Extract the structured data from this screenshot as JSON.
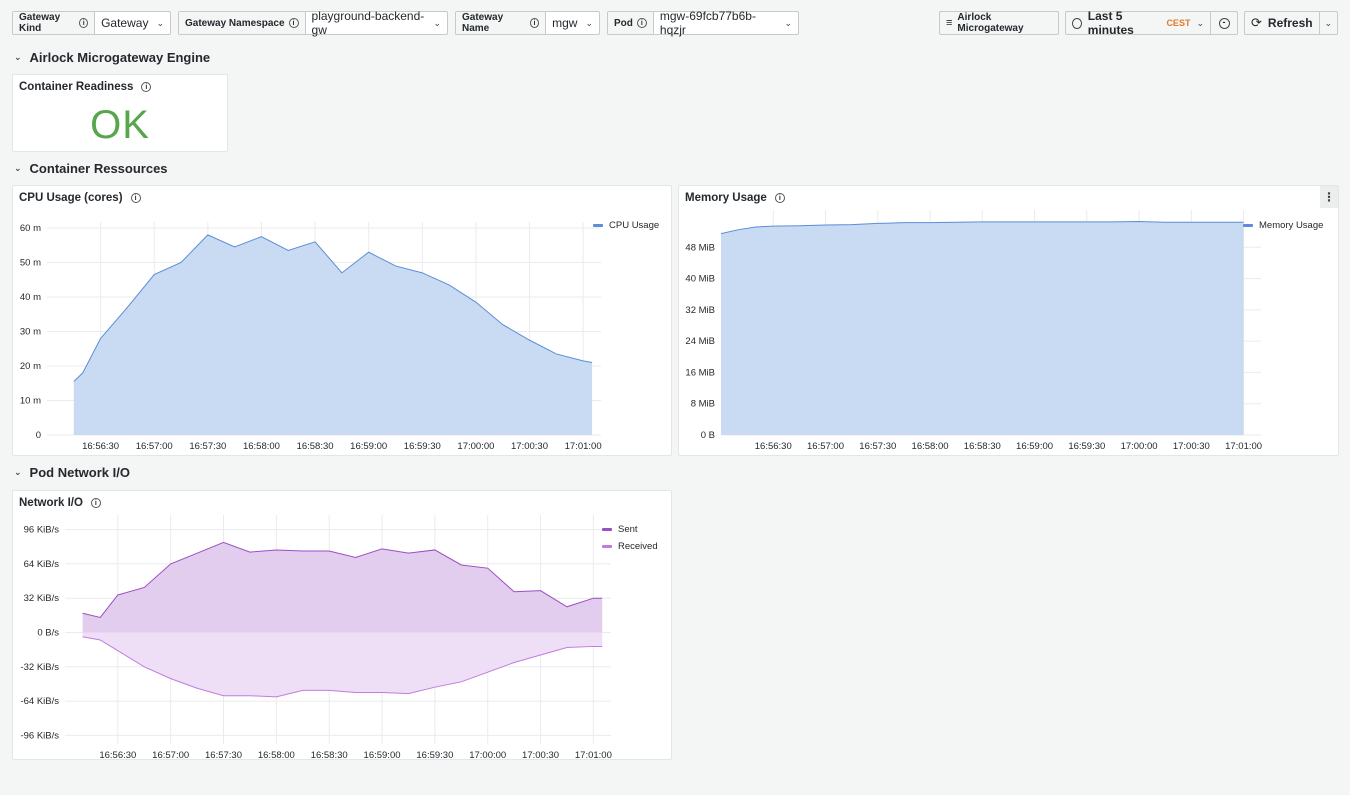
{
  "toolbar": {
    "vars": [
      {
        "label": "Gateway Kind",
        "value": "Gateway"
      },
      {
        "label": "Gateway Namespace",
        "value": "playground-backend-gw"
      },
      {
        "label": "Gateway Name",
        "value": "mgw"
      },
      {
        "label": "Pod",
        "value": "mgw-69fcb77b6b-hqzjr"
      }
    ],
    "dashboard_link": "Airlock Microgateway",
    "time_range": "Last 5 minutes",
    "timezone": "CEST",
    "refresh_label": "Refresh"
  },
  "rows": [
    {
      "title": "Airlock Microgateway Engine"
    },
    {
      "title": "Container Ressources"
    },
    {
      "title": "Pod Network I/O"
    }
  ],
  "panels": {
    "readiness": {
      "title": "Container Readiness",
      "value": "OK"
    },
    "cpu": {
      "title": "CPU Usage (cores)"
    },
    "memory": {
      "title": "Memory Usage"
    },
    "network": {
      "title": "Network I/O"
    }
  },
  "colors": {
    "ok": "#56a64b",
    "blue_line": "#5b8ed6",
    "blue_fill": "#c9daf3",
    "purple_line": "#9b4fc2",
    "purple_fill": "#e3cdee",
    "light_purple_line": "#c27be0",
    "light_purple_fill": "#efdff6"
  },
  "chart_data": [
    {
      "type": "area",
      "title": "CPU Usage (cores)",
      "x": [
        "16:56:15",
        "16:56:20",
        "16:56:30",
        "16:56:45",
        "16:57:00",
        "16:57:15",
        "16:57:30",
        "16:57:45",
        "16:58:00",
        "16:58:15",
        "16:58:30",
        "16:58:45",
        "16:59:00",
        "16:59:15",
        "16:59:30",
        "16:59:45",
        "17:00:00",
        "17:00:15",
        "17:00:30",
        "17:00:45",
        "17:01:00",
        "17:01:05"
      ],
      "x_ticks": [
        "16:56:30",
        "16:57:00",
        "16:57:30",
        "16:58:00",
        "16:58:30",
        "16:59:00",
        "16:59:30",
        "17:00:00",
        "17:00:30",
        "17:01:00"
      ],
      "y_ticks": [
        "0",
        "10 m",
        "20 m",
        "30 m",
        "40 m",
        "50 m",
        "60 m"
      ],
      "ylim": [
        0,
        60
      ],
      "series": [
        {
          "name": "CPU Usage",
          "values": [
            15.5,
            18,
            28,
            37,
            46.5,
            50,
            58,
            54.5,
            57.5,
            53.5,
            56,
            47,
            53,
            49,
            47,
            43.5,
            38.5,
            32,
            27.5,
            23.5,
            21.5,
            21
          ]
        }
      ],
      "legend": "top-right"
    },
    {
      "type": "area",
      "title": "Memory Usage",
      "x": [
        "16:56:00",
        "16:56:10",
        "16:56:20",
        "16:56:30",
        "16:56:45",
        "16:57:00",
        "16:57:15",
        "16:57:30",
        "16:57:45",
        "16:58:00",
        "16:58:15",
        "16:58:30",
        "16:58:45",
        "16:59:00",
        "16:59:15",
        "16:59:30",
        "16:59:45",
        "17:00:00",
        "17:00:15",
        "17:00:30",
        "17:00:45",
        "17:01:00"
      ],
      "x_ticks": [
        "16:56:30",
        "16:57:00",
        "16:57:30",
        "16:58:00",
        "16:58:30",
        "16:59:00",
        "16:59:30",
        "17:00:00",
        "17:00:30",
        "17:01:00"
      ],
      "y_ticks": [
        "0 B",
        "8 MiB",
        "16 MiB",
        "24 MiB",
        "32 MiB",
        "40 MiB",
        "48 MiB"
      ],
      "ylim": [
        0,
        56
      ],
      "series": [
        {
          "name": "Memory Usage",
          "values": [
            51.5,
            52.5,
            53.2,
            53.4,
            53.5,
            53.7,
            53.8,
            54.1,
            54.3,
            54.3,
            54.4,
            54.5,
            54.5,
            54.5,
            54.5,
            54.5,
            54.5,
            54.6,
            54.4,
            54.4,
            54.4,
            54.4
          ]
        }
      ],
      "legend": "top-right"
    },
    {
      "type": "area",
      "title": "Network I/O",
      "x": [
        "16:56:10",
        "16:56:20",
        "16:56:30",
        "16:56:45",
        "16:57:00",
        "16:57:15",
        "16:57:30",
        "16:57:45",
        "16:58:00",
        "16:58:15",
        "16:58:30",
        "16:58:45",
        "16:59:00",
        "16:59:15",
        "16:59:30",
        "16:59:45",
        "17:00:00",
        "17:00:15",
        "17:00:30",
        "17:00:45",
        "17:01:00",
        "17:01:05"
      ],
      "x_ticks": [
        "16:56:30",
        "16:57:00",
        "16:57:30",
        "16:58:00",
        "16:58:30",
        "16:59:00",
        "16:59:30",
        "17:00:00",
        "17:00:30",
        "17:01:00"
      ],
      "y_ticks": [
        "-96 KiB/s",
        "-64 KiB/s",
        "-32 KiB/s",
        "0 B/s",
        "32 KiB/s",
        "64 KiB/s",
        "96 KiB/s"
      ],
      "ylim": [
        -104,
        104
      ],
      "series": [
        {
          "name": "Sent",
          "values": [
            18,
            14,
            35,
            42,
            64,
            74,
            84,
            75,
            77,
            76,
            76,
            70,
            78,
            74,
            77,
            63,
            60,
            38,
            39,
            24,
            32,
            32
          ]
        },
        {
          "name": "Received",
          "values": [
            -4,
            -7,
            -17,
            -32,
            -43,
            -52,
            -59,
            -59,
            -60,
            -54,
            -54,
            -56,
            -56,
            -57,
            -51,
            -46,
            -37,
            -28,
            -21,
            -14,
            -13,
            -13
          ]
        }
      ],
      "legend": "top-right"
    }
  ]
}
